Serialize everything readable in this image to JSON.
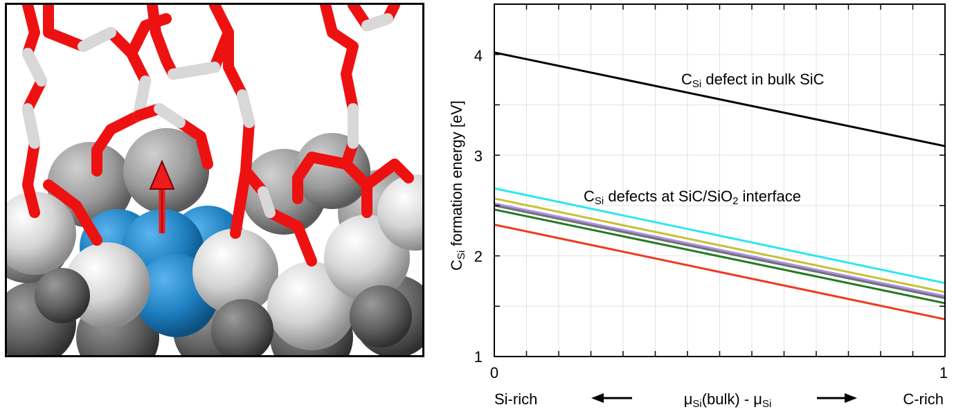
{
  "chart_data": {
    "type": "line",
    "x": [
      0,
      1
    ],
    "xlim": [
      0,
      1
    ],
    "ylim": [
      1,
      4.5
    ],
    "x_ticks": [
      0,
      1
    ],
    "y_ticks": [
      1,
      2,
      3,
      4
    ],
    "grid": true,
    "ylabel": {
      "main": "C",
      "sub": "Si",
      "rest": " formation energy [eV]"
    },
    "xlabel": {
      "left": "Si-rich",
      "right": "C-rich",
      "center": {
        "mu": "μ",
        "sub1": "Si",
        "mid": "(bulk) - μ",
        "sub2": "Si"
      }
    },
    "annotations": [
      {
        "main": "C",
        "sub": "Si",
        "rest": " defect in bulk SiC",
        "x": 0.4,
        "y": 3.75
      },
      {
        "main": "C",
        "sub": "Si",
        "rest1": " defects at SiC/SiO",
        "sub2": "2",
        "rest2": " interface",
        "x": 0.2,
        "y": 2.57
      }
    ],
    "series": [
      {
        "values": [
          4.02,
          3.09
        ],
        "color": "#000000"
      },
      {
        "values": [
          2.67,
          1.73
        ],
        "color": "#2ee6ee"
      },
      {
        "values": [
          2.57,
          1.64
        ],
        "color": "#c8c030"
      },
      {
        "values": [
          2.52,
          1.6
        ],
        "color": "#a98ee6"
      },
      {
        "values": [
          2.5,
          1.58
        ],
        "color": "#707070"
      },
      {
        "values": [
          2.46,
          1.53
        ],
        "color": "#1f7a1f"
      },
      {
        "values": [
          2.31,
          1.37
        ],
        "color": "#ee3a20"
      }
    ]
  },
  "molecule": {
    "arrow_color": "#ee1c1c",
    "highlight_color": "#1e7fc0",
    "bond_colors": [
      "#ee1111",
      "#d8d8d8"
    ]
  }
}
